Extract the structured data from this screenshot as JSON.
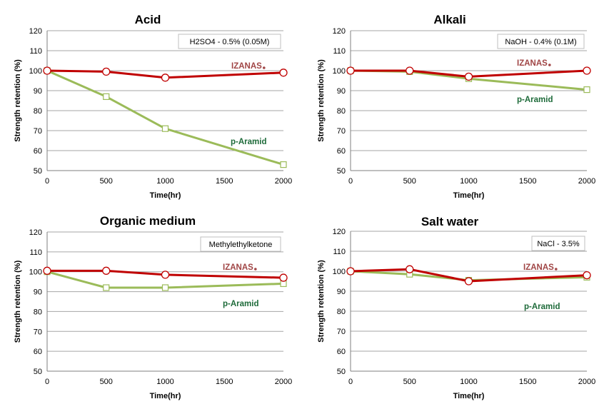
{
  "colors": {
    "izanas_line": "#c00000",
    "aramid_line": "#9bbb59",
    "izanas_label": "#a04545",
    "aramid_label": "#1e6b3a"
  },
  "chart_data": [
    {
      "type": "line",
      "title": "Acid",
      "condition": "H2SO4 - 0.5% (0.05M)",
      "xlabel": "Time(hr)",
      "ylabel": "Strength retention (%)",
      "xlim": [
        0,
        2000
      ],
      "ylim": [
        50,
        120
      ],
      "xticks": [
        0,
        500,
        1000,
        1500,
        2000
      ],
      "yticks": [
        50,
        60,
        70,
        80,
        90,
        100,
        110,
        120
      ],
      "grid": true,
      "series": [
        {
          "name": "IZANAS",
          "marker": "circle",
          "x": [
            0,
            500,
            1000,
            2000
          ],
          "y": [
            100,
            99.5,
            96.5,
            99
          ]
        },
        {
          "name": "p-Aramid",
          "marker": "square",
          "x": [
            0,
            500,
            1000,
            2000
          ],
          "y": [
            100,
            87,
            71,
            53
          ]
        }
      ]
    },
    {
      "type": "line",
      "title": "Alkali",
      "condition": "NaOH - 0.4% (0.1M)",
      "xlabel": "Time(hr)",
      "ylabel": "Strength retention (%)",
      "xlim": [
        0,
        2000
      ],
      "ylim": [
        50,
        120
      ],
      "xticks": [
        0,
        500,
        1000,
        1500,
        2000
      ],
      "yticks": [
        50,
        60,
        70,
        80,
        90,
        100,
        110,
        120
      ],
      "grid": true,
      "series": [
        {
          "name": "IZANAS",
          "marker": "circle",
          "x": [
            0,
            500,
            1000,
            2000
          ],
          "y": [
            100,
            100,
            97,
            100
          ]
        },
        {
          "name": "p-Aramid",
          "marker": "square",
          "x": [
            0,
            500,
            1000,
            2000
          ],
          "y": [
            100,
            99.5,
            96,
            90.5
          ]
        }
      ]
    },
    {
      "type": "line",
      "title": "Organic medium",
      "condition": "Methylethylketone",
      "xlabel": "Time(hr)",
      "ylabel": "Strength retention (%)",
      "xlim": [
        0,
        2000
      ],
      "ylim": [
        50,
        120
      ],
      "xticks": [
        0,
        500,
        1000,
        1500,
        2000
      ],
      "yticks": [
        50,
        60,
        70,
        80,
        90,
        100,
        110,
        120
      ],
      "grid": true,
      "series": [
        {
          "name": "IZANAS",
          "marker": "circle",
          "x": [
            0,
            500,
            1000,
            2000
          ],
          "y": [
            100.5,
            100.5,
            98.5,
            97
          ]
        },
        {
          "name": "p-Aramid",
          "marker": "square",
          "x": [
            0,
            500,
            1000,
            2000
          ],
          "y": [
            100,
            92,
            92,
            94
          ]
        }
      ]
    },
    {
      "type": "line",
      "title": "Salt water",
      "condition": "NaCl - 3.5%",
      "xlabel": "Time(hr)",
      "ylabel": "Strength retention (%)",
      "xlim": [
        0,
        2000
      ],
      "ylim": [
        50,
        120
      ],
      "xticks": [
        0,
        500,
        1000,
        1500,
        2000
      ],
      "yticks": [
        50,
        60,
        70,
        80,
        90,
        100,
        110,
        120
      ],
      "grid": true,
      "series": [
        {
          "name": "IZANAS",
          "marker": "circle",
          "x": [
            0,
            500,
            1000,
            2000
          ],
          "y": [
            100,
            101,
            95,
            98
          ]
        },
        {
          "name": "p-Aramid",
          "marker": "square",
          "x": [
            0,
            500,
            1000,
            2000
          ],
          "y": [
            100,
            98.5,
            95.5,
            97
          ]
        }
      ]
    }
  ]
}
